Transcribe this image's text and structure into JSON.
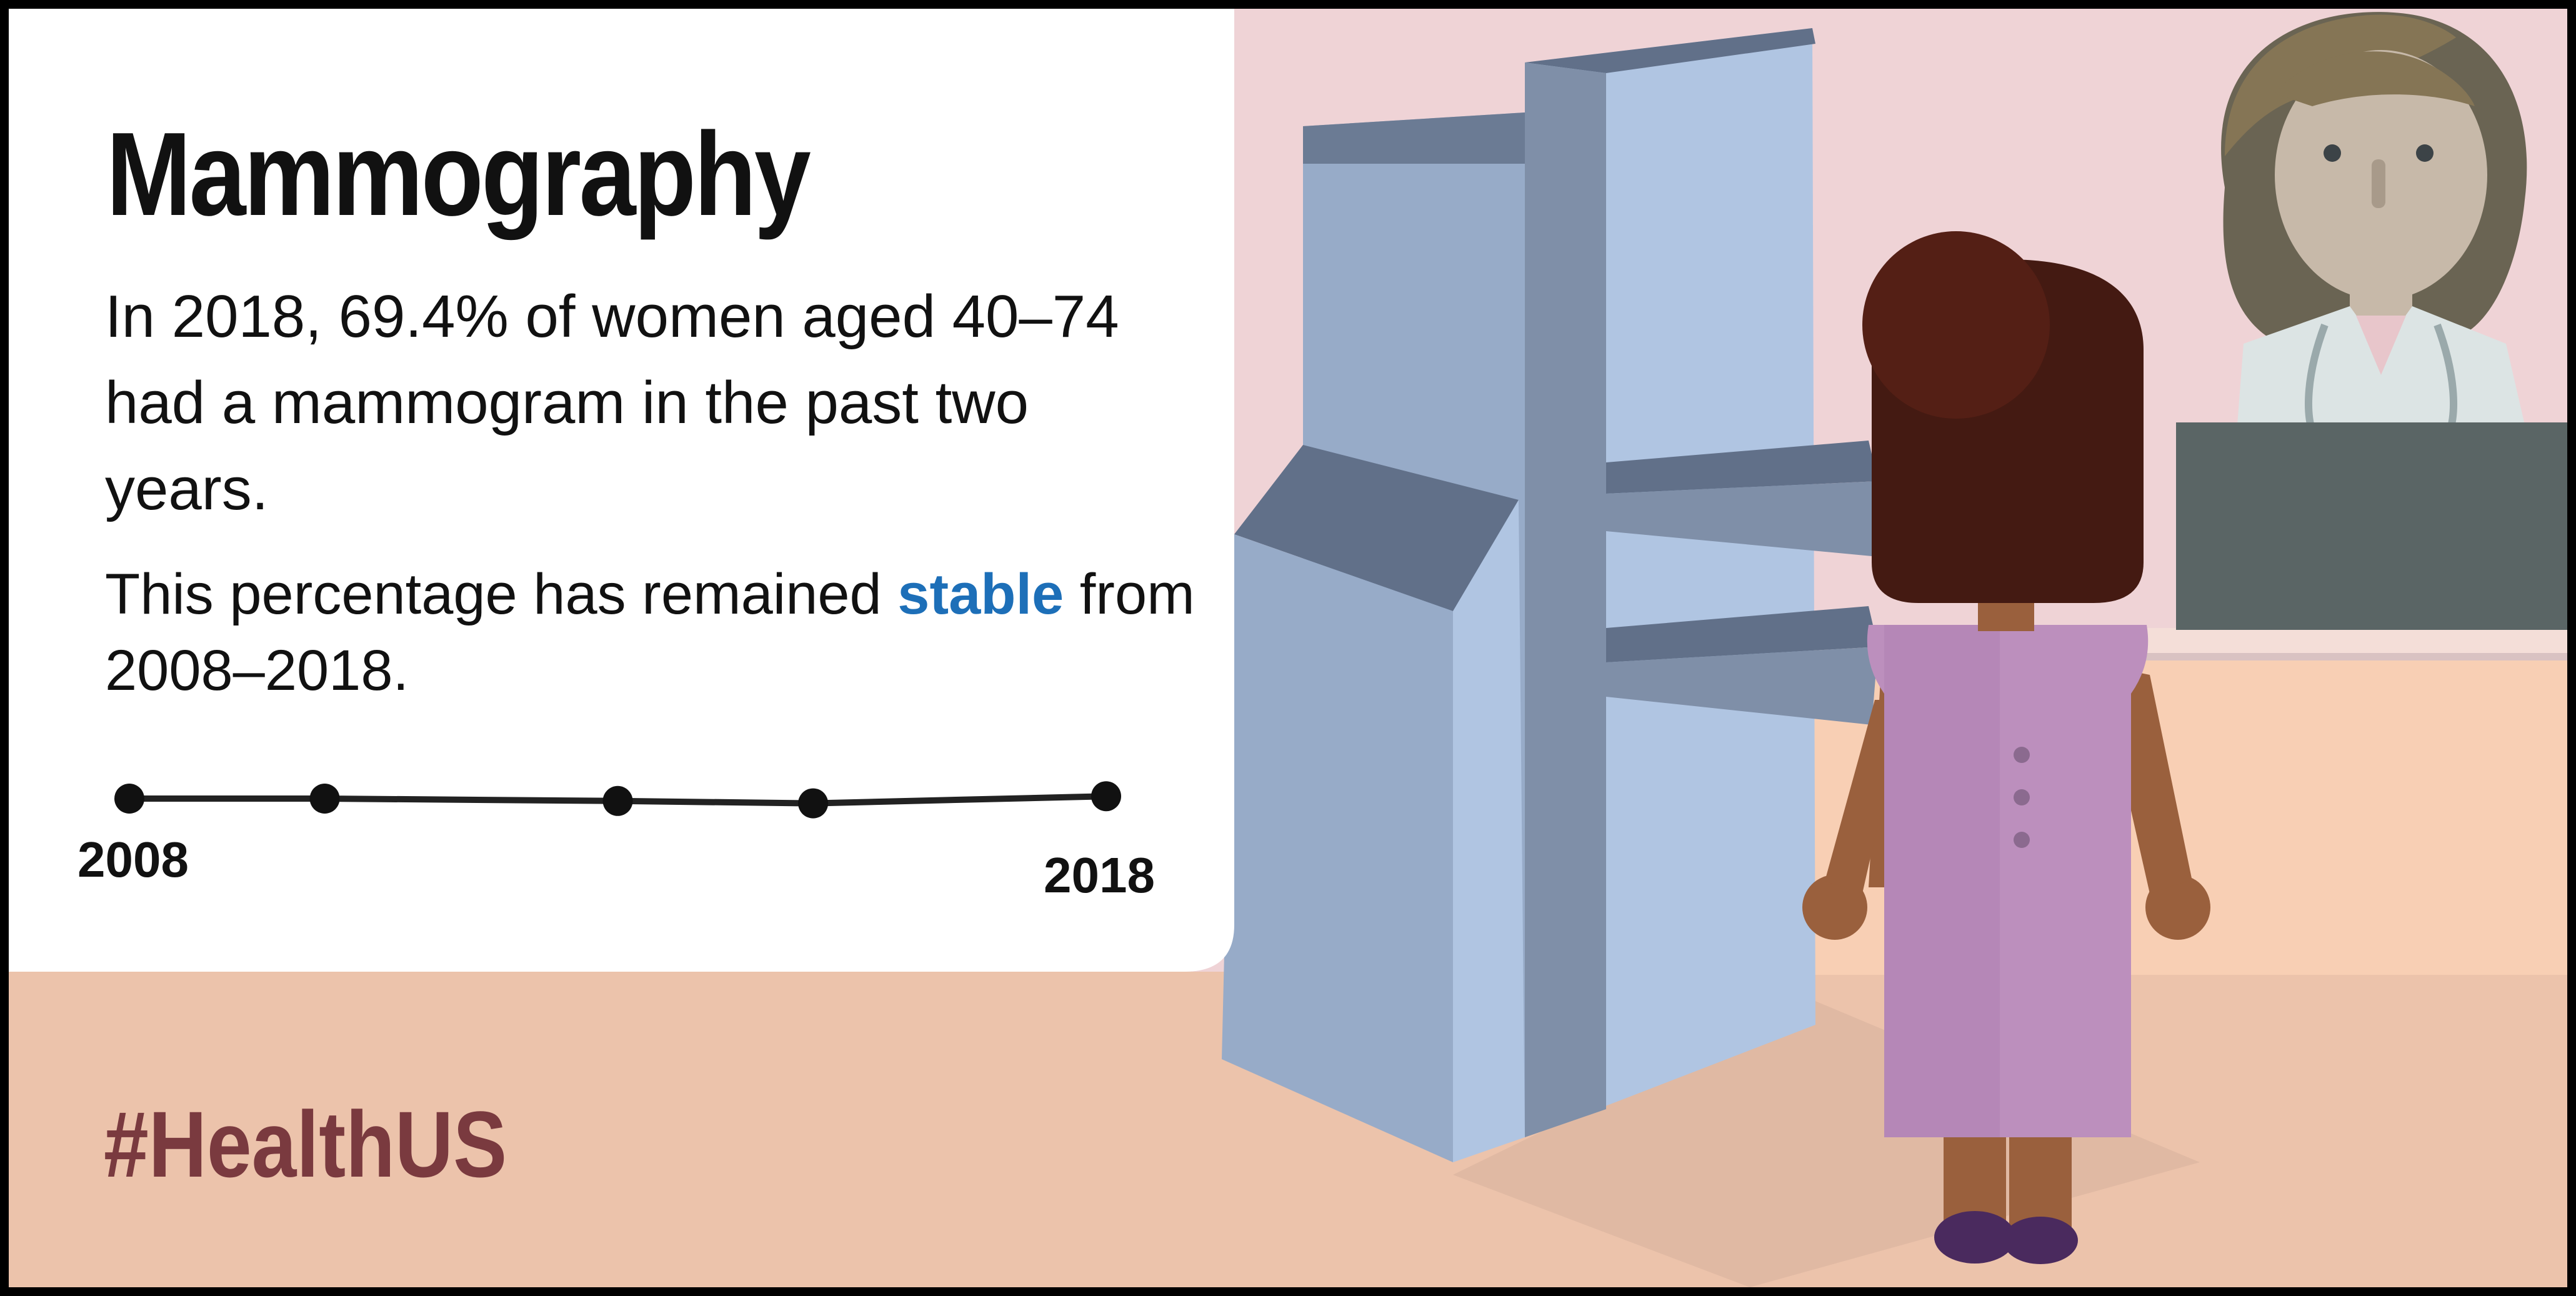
{
  "title": "Mammography",
  "paragraph_1": "In 2018, 69.4% of women aged 40–74 had a mammogram in the past two years.",
  "paragraph_2": {
    "before": "This percentage has remained ",
    "highlight": "stable",
    "after": " from 2008–2018."
  },
  "hashtag": "#HealthUS",
  "colors": {
    "highlight": "#1d6fb8",
    "hashtag": "#7a3a3f",
    "wall": "#efd3d6",
    "floor": "#ecc3ab",
    "machine": "#97abc8",
    "gown": "#bc8fbd"
  },
  "chart_data": {
    "type": "line",
    "x": [
      2008,
      2010,
      2013,
      2015,
      2018
    ],
    "values": [
      1.0,
      1.0,
      0.99,
      0.98,
      1.01
    ],
    "x_tick_labels": [
      "2008",
      "2018"
    ],
    "ylim": [
      0.5,
      1.5
    ],
    "grid": false
  }
}
